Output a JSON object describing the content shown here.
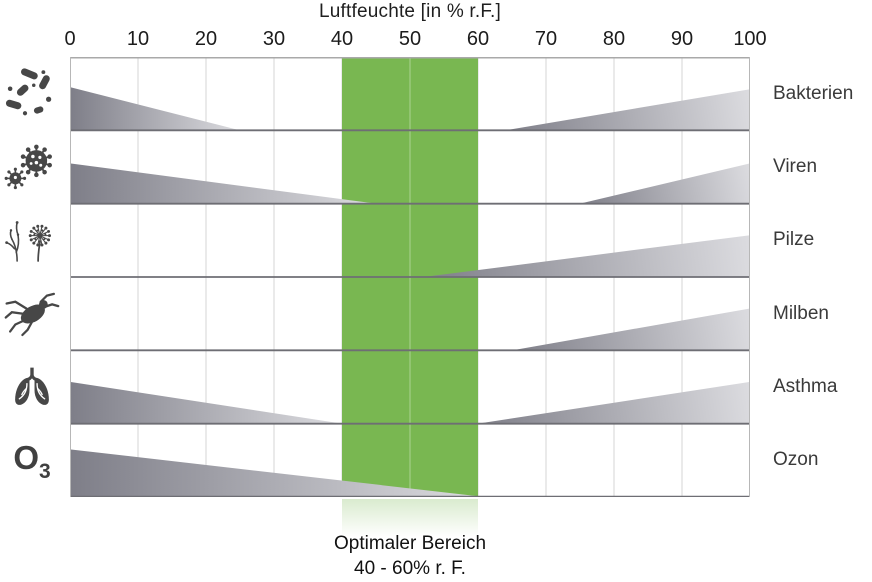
{
  "chart_data": {
    "type": "area",
    "subtype": "humidity-risk-range-chart",
    "title": "Luftfeuchte [in % r.F.]",
    "xlabel": "Luftfeuchte [in % r.F.]",
    "ylabel": "",
    "x_range": [
      0,
      100
    ],
    "x_ticks": [
      0,
      10,
      20,
      30,
      40,
      50,
      60,
      70,
      80,
      90,
      100
    ],
    "grid": "vertical-on",
    "legend": "none",
    "optimal_zone": {
      "from": 40,
      "to": 60,
      "color": "#79b751",
      "inner_gridline_at": 50,
      "inner_gridline_color": "#9bca7c"
    },
    "rows": [
      {
        "label": "Bakterien",
        "icon": "bacteria-icon",
        "wedges": [
          {
            "range": [
              0,
              25
            ],
            "peak": "left",
            "peak_height": 0.59
          },
          {
            "range": [
              64,
              100
            ],
            "peak": "right",
            "peak_height": 0.56
          }
        ]
      },
      {
        "label": "Viren",
        "icon": "virus-icon",
        "wedges": [
          {
            "range": [
              0,
              45
            ],
            "peak": "left",
            "peak_height": 0.55
          },
          {
            "range": [
              75,
              100
            ],
            "peak": "right",
            "peak_height": 0.55
          }
        ]
      },
      {
        "label": "Pilze",
        "icon": "fungi-icon",
        "wedges": [
          {
            "range": [
              52,
              100
            ],
            "peak": "right",
            "peak_height": 0.57
          }
        ]
      },
      {
        "label": "Milben",
        "icon": "mite-icon",
        "wedges": [
          {
            "range": [
              65,
              100
            ],
            "peak": "right",
            "peak_height": 0.57
          }
        ]
      },
      {
        "label": "Asthma",
        "icon": "lungs-icon",
        "wedges": [
          {
            "range": [
              0,
              40
            ],
            "peak": "left",
            "peak_height": 0.57
          },
          {
            "range": [
              60,
              100
            ],
            "peak": "right",
            "peak_height": 0.57
          }
        ]
      },
      {
        "label": "Ozon",
        "icon": "ozone-icon",
        "icon_text": "O",
        "icon_subscript": "3",
        "wedges": [
          {
            "range": [
              0,
              61
            ],
            "peak": "left",
            "peak_height": 0.65
          }
        ]
      }
    ],
    "footer": {
      "line1": "Optimaler Bereich",
      "line2": "40 - 60% r. F."
    },
    "colors": {
      "wedge_dark": "#7e7e88",
      "wedge_light": "#dcdce0",
      "grid": "#d4d4d4",
      "row_line": "#6e6e74",
      "top_border": "#a9a9a9",
      "side_border": "#b7b7b7",
      "icon": "#474747",
      "text": "#1c1c1c"
    }
  }
}
